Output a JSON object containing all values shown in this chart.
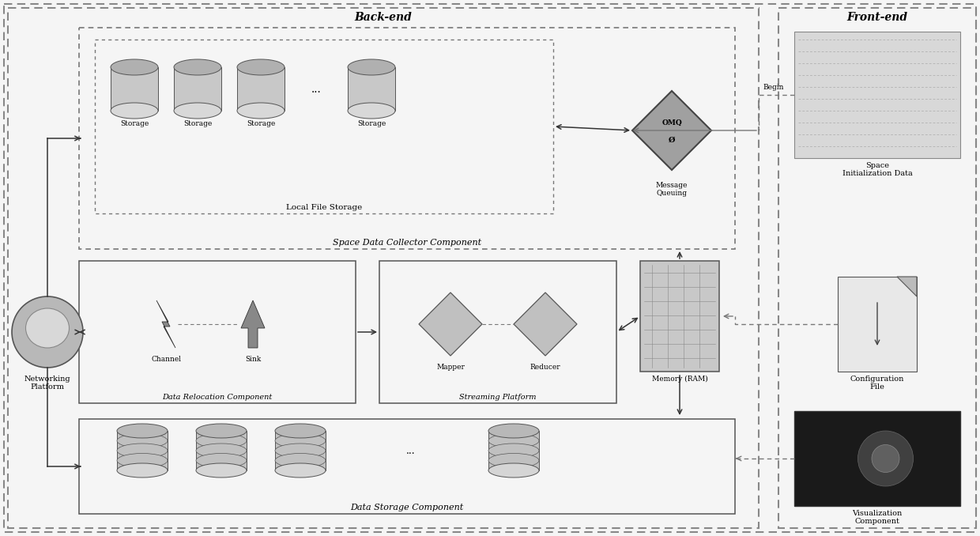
{
  "bg_color": "#f0f0f0",
  "backend_label": "Back-end",
  "frontend_label": "Front-end",
  "space_data_collector_label": "Space Data Collector Component",
  "local_file_storage_label": "Local File Storage",
  "data_relocation_label": "Data Relocation Component",
  "streaming_platform_label": "Streaming Platform",
  "data_storage_label": "Data Storage Component",
  "networking_platform_label": "Networking\nPlatform",
  "message_queuing_label": "Message\nQueuing",
  "channel_label": "Channel",
  "sink_label": "Sink",
  "mapper_label": "Mapper",
  "reducer_label": "Reducer",
  "memory_ram_label": "Memory (RAM)",
  "space_init_label": "Space\nInitialization Data",
  "config_file_label": "Configuration\nFile",
  "visualization_label": "Visualization\nComponent",
  "begin_label": "Begin",
  "storage_label": "Storage",
  "dots_label": "..."
}
